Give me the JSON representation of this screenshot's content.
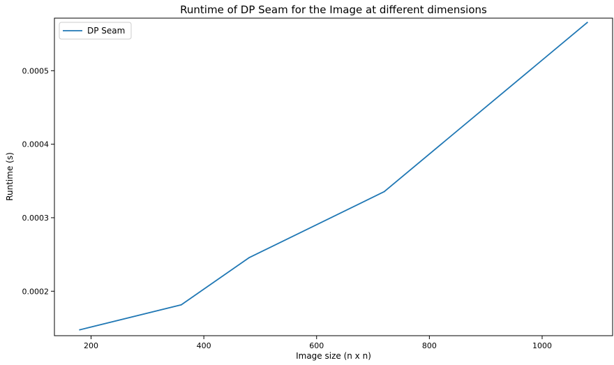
{
  "chart_data": {
    "type": "line",
    "title": "Runtime of DP Seam for the Image at different dimensions",
    "xlabel": "Image size (n x n)",
    "ylabel": "Runtime (s)",
    "xlim": [
      135,
      1125
    ],
    "ylim": [
      0.0001395,
      0.0005715
    ],
    "xticks": [
      200,
      400,
      600,
      800,
      1000
    ],
    "xtick_labels": [
      "200",
      "400",
      "600",
      "800",
      "1000"
    ],
    "yticks": [
      0.0002,
      0.0003,
      0.0004,
      0.0005
    ],
    "ytick_labels": [
      "0.0002",
      "0.0003",
      "0.0004",
      "0.0005"
    ],
    "grid": false,
    "legend_position": "top-left",
    "series": [
      {
        "name": "DP Seam",
        "color": "#1f77b4",
        "x": [
          180,
          360,
          480,
          720,
          1080
        ],
        "y": [
          0.0001475,
          0.0001815,
          0.0002455,
          0.0003355,
          0.0005655
        ]
      }
    ]
  }
}
